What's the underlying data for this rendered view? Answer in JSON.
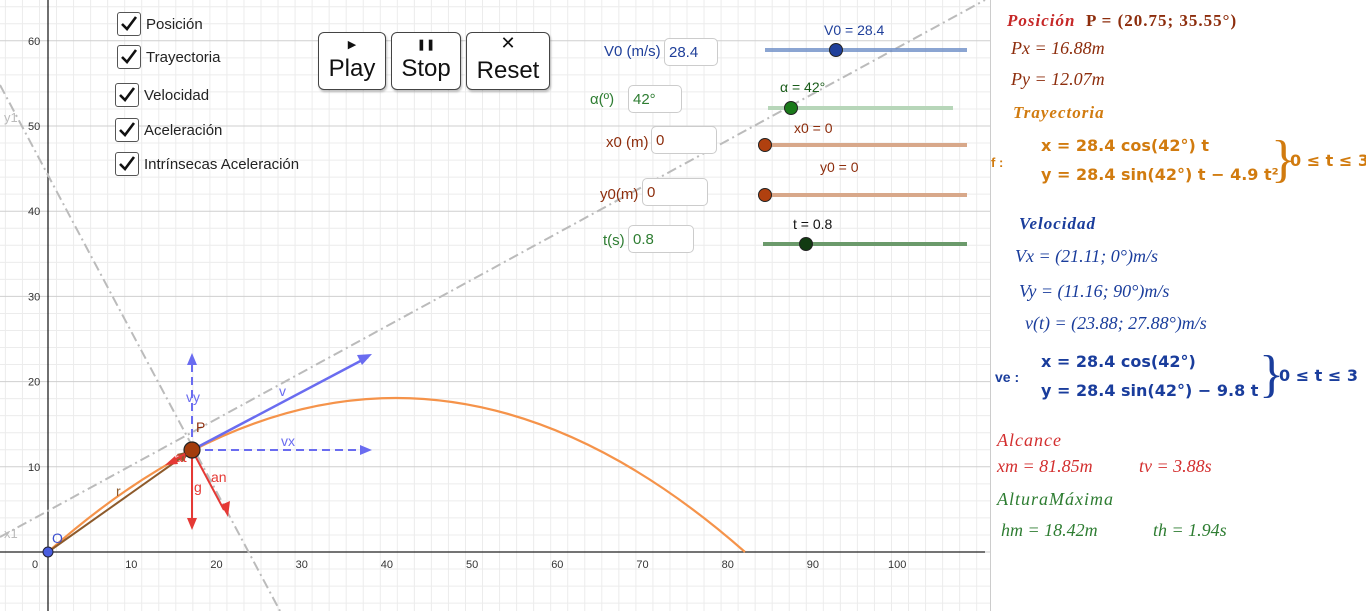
{
  "checkboxes": [
    {
      "label": "Posición",
      "checked": true
    },
    {
      "label": "Trayectoria",
      "checked": true
    },
    {
      "label": "Velocidad",
      "checked": true
    },
    {
      "label": "Aceleración",
      "checked": true
    },
    {
      "label": "Intrínsecas Aceleración",
      "checked": true
    }
  ],
  "buttons": {
    "play": "Play",
    "stop": "Stop",
    "reset": "Reset"
  },
  "inputs": {
    "v0": {
      "label": "V0 (m/s)",
      "value": "28.4"
    },
    "alpha": {
      "label": "α(º)",
      "value": "42°"
    },
    "x0": {
      "label": "x0 (m)",
      "value": "0"
    },
    "y0": {
      "label": "y0(m)",
      "value": "0"
    },
    "t": {
      "label": "t(s)",
      "value": "0.8"
    }
  },
  "sliders": {
    "v0": {
      "label": "V0 = 28.4",
      "value": 28.4
    },
    "alpha": {
      "label": "α = 42°",
      "value": 42
    },
    "x0": {
      "label": "x0 = 0",
      "value": 0
    },
    "y0": {
      "label": "y0 = 0",
      "value": 0
    },
    "t": {
      "label": "t = 0.8",
      "value": 0.8
    }
  },
  "axes": {
    "x_ticks": [
      "0",
      "10",
      "20",
      "30",
      "40",
      "50",
      "60",
      "70",
      "80",
      "90",
      "100"
    ],
    "y_ticks": [
      "10",
      "20",
      "30",
      "40",
      "50",
      "60"
    ]
  },
  "graph_labels": {
    "origin": "O",
    "point": "P",
    "r": "r",
    "v": "v",
    "vx": "vx",
    "vy": "vy",
    "g": "g",
    "at": "at",
    "an": "an",
    "x1": "x1",
    "y1": "y1"
  },
  "algebra": {
    "pos_title": "Posición",
    "pos_eq": "P = (20.75; 35.55°)",
    "px": "Px = 16.88m",
    "py": "Py = 12.07m",
    "tray_title": "Trayectoria",
    "tray_name": "f :",
    "tray_x": "x = 28.4  cos(42°) t",
    "tray_y": "y = 28.4  sin(42°) t − 4.9 t²",
    "tray_range": "0 ≤ t ≤ 3",
    "vel_title": "Velocidad",
    "vx": "Vx = (21.11; 0°)m/s",
    "vy": "Vy = (11.16; 90°)m/s",
    "vt": "v(t) = (23.88; 27.88°)m/s",
    "ve_name": "ve :",
    "ve_x": "x = 28.4  cos(42°)",
    "ve_y": "y = 28.4  sin(42°) − 9.8 t",
    "ve_range": "0 ≤ t ≤ 3",
    "alc_title": "Alcance",
    "xm": "xm = 81.85m",
    "tv": "tv = 3.88s",
    "alt_title": "AlturaMáxima",
    "hm": "hm = 18.42m",
    "th": "th = 1.94s"
  },
  "colors": {
    "orange": "#f5934a",
    "blue": "#6a6cf0",
    "red": "#e53935",
    "algred": "#d32f2f",
    "brown": "#8d4a1c",
    "algblue": "#1a3d9c",
    "green": "#2e7d32",
    "gold": "#d17b0f"
  }
}
